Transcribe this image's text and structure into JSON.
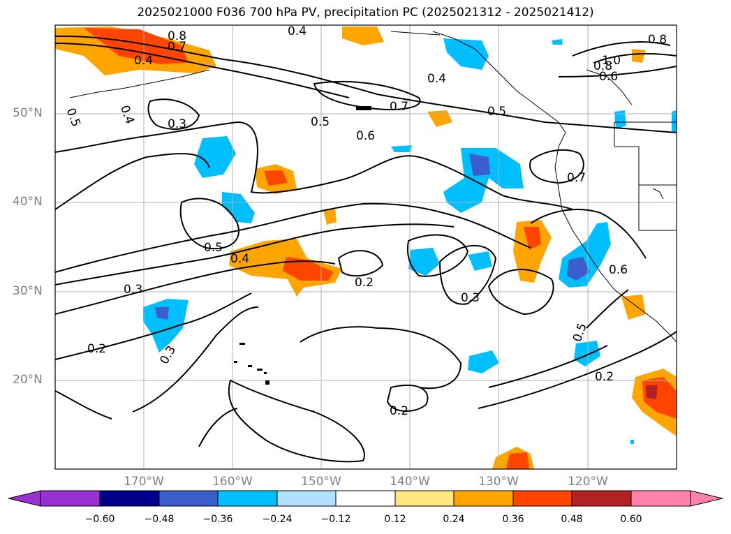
{
  "title": "2025021000 F036 700 hPa PV, precipitation PC (2025021312 - 2025021412)",
  "lat_labels": [
    "50°N",
    "40°N",
    "30°N",
    "20°N"
  ],
  "lon_labels": [
    "170°W",
    "160°W",
    "150°W",
    "140°W",
    "130°W",
    "120°W"
  ],
  "contour_labels": [
    "0.8",
    "0.7",
    "0.4",
    "0.4",
    "0.5",
    "0.4",
    "0.3",
    "0.7",
    "0.5",
    "0.5",
    "0.6",
    "0.4",
    "0.7",
    "1.0",
    "0.8",
    "0.6",
    "0.8",
    "0.5",
    "0.4",
    "0.3",
    "0.2",
    "0.2",
    "0.3",
    "0.3",
    "0.5",
    "0.6",
    "0.2",
    "0.2"
  ],
  "colorbar": {
    "ticks": [
      "−0.60",
      "−0.48",
      "−0.36",
      "−0.24",
      "−0.12",
      "0.12",
      "0.24",
      "0.36",
      "0.48",
      "0.60"
    ],
    "colors": [
      "#9b30d0",
      "#00008b",
      "#3a5fcd",
      "#00bfff",
      "#b0e2ff",
      "#ffffff",
      "#ffe680",
      "#ffa500",
      "#ff4500",
      "#b22222",
      "#ff82ab"
    ]
  }
}
